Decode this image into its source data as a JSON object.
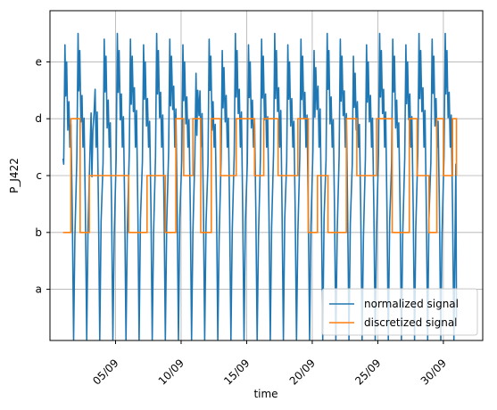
{
  "chart_data": {
    "type": "line",
    "title": "",
    "xlabel": "time",
    "ylabel": "P_J422",
    "grid": true,
    "legend_position": "bottom-right",
    "x_axis": {
      "type": "date",
      "range": [
        "2023-08-31",
        "2023-10-03"
      ],
      "ticks": [
        {
          "date": "2023-09-05",
          "label": "05/09"
        },
        {
          "date": "2023-09-10",
          "label": "10/09"
        },
        {
          "date": "2023-09-15",
          "label": "15/09"
        },
        {
          "date": "2023-09-20",
          "label": "20/09"
        },
        {
          "date": "2023-09-25",
          "label": "25/09"
        },
        {
          "date": "2023-09-30",
          "label": "30/09"
        }
      ]
    },
    "y_axis": {
      "range": [
        -0.9,
        4.9
      ],
      "ticks": [
        {
          "value": 0,
          "label": "a"
        },
        {
          "value": 1,
          "label": "b"
        },
        {
          "value": 2,
          "label": "c"
        },
        {
          "value": 3,
          "label": "d"
        },
        {
          "value": 4,
          "label": "e"
        }
      ]
    },
    "series": [
      {
        "name": "normalized signal",
        "color": "#1f77b4",
        "style": "daily-cycle",
        "start": "2023-09-01",
        "end": "2023-10-01",
        "baseline_start": 2.3,
        "daily_peaks": [
          4.3,
          4.5,
          3.1,
          4.4,
          4.5,
          4.4,
          4.3,
          4.5,
          4.4,
          4.3,
          3.8,
          4.4,
          4.2,
          4.5,
          4.3,
          4.4,
          4.5,
          4.3,
          4.4,
          4.2,
          4.5,
          4.4,
          4.1,
          4.3,
          4.5,
          4.4,
          4.3,
          4.5,
          4.4,
          4.5
        ],
        "daily_lows": [
          -1.5,
          -1.2,
          -0.9,
          -1.4,
          -1.3,
          -1.2,
          -1.1,
          -1.4,
          -1.3,
          -1.2,
          -1.3,
          -1.4,
          -1.3,
          -1.4,
          -1.2,
          -1.3,
          -1.4,
          -1.3,
          -1.1,
          -1.3,
          -1.4,
          -1.2,
          -1.3,
          -1.3,
          -1.2,
          -1.4,
          -1.3,
          -1.2,
          -1.3,
          -1.1
        ],
        "end_value": -0.5
      },
      {
        "name": "discretized signal",
        "color": "#ff7f0e",
        "steps": [
          {
            "from": "2023-09-01",
            "to": "2023-09-01.6",
            "level": 1
          },
          {
            "from": "2023-09-01.6",
            "to": "2023-09-02.3",
            "level": 3
          },
          {
            "from": "2023-09-02.3",
            "to": "2023-09-03.0",
            "level": 1
          },
          {
            "from": "2023-09-03.0",
            "to": "2023-09-06.0",
            "level": 2
          },
          {
            "from": "2023-09-06.0",
            "to": "2023-09-07.4",
            "level": 1
          },
          {
            "from": "2023-09-07.4",
            "to": "2023-09-08.8",
            "level": 2
          },
          {
            "from": "2023-09-08.8",
            "to": "2023-09-09.6",
            "level": 1
          },
          {
            "from": "2023-09-09.6",
            "to": "2023-09-10.2",
            "level": 3
          },
          {
            "from": "2023-09-10.2",
            "to": "2023-09-10.9",
            "level": 2
          },
          {
            "from": "2023-09-10.9",
            "to": "2023-09-11.5",
            "level": 3
          },
          {
            "from": "2023-09-11.5",
            "to": "2023-09-12.3",
            "level": 1
          },
          {
            "from": "2023-09-12.3",
            "to": "2023-09-13.0",
            "level": 3
          },
          {
            "from": "2023-09-13.0",
            "to": "2023-09-14.2",
            "level": 2
          },
          {
            "from": "2023-09-14.2",
            "to": "2023-09-15.6",
            "level": 3
          },
          {
            "from": "2023-09-15.6",
            "to": "2023-09-16.3",
            "level": 2
          },
          {
            "from": "2023-09-16.3",
            "to": "2023-09-17.4",
            "level": 3
          },
          {
            "from": "2023-09-17.4",
            "to": "2023-09-18.9",
            "level": 2
          },
          {
            "from": "2023-09-18.9",
            "to": "2023-09-19.7",
            "level": 3
          },
          {
            "from": "2023-09-19.7",
            "to": "2023-09-20.4",
            "level": 1
          },
          {
            "from": "2023-09-20.4",
            "to": "2023-09-21.2",
            "level": 2
          },
          {
            "from": "2023-09-21.2",
            "to": "2023-09-22.6",
            "level": 1
          },
          {
            "from": "2023-09-22.6",
            "to": "2023-09-23.4",
            "level": 3
          },
          {
            "from": "2023-09-23.4",
            "to": "2023-09-24.9",
            "level": 2
          },
          {
            "from": "2023-09-24.9",
            "to": "2023-09-26.1",
            "level": 3
          },
          {
            "from": "2023-09-26.1",
            "to": "2023-09-27.4",
            "level": 1
          },
          {
            "from": "2023-09-27.4",
            "to": "2023-09-28.0",
            "level": 3
          },
          {
            "from": "2023-09-28.0",
            "to": "2023-09-28.9",
            "level": 2
          },
          {
            "from": "2023-09-28.9",
            "to": "2023-09-29.5",
            "level": 1
          },
          {
            "from": "2023-09-29.5",
            "to": "2023-09-30.0",
            "level": 3
          },
          {
            "from": "2023-09-30.0",
            "to": "2023-09-30.7",
            "level": 2
          },
          {
            "from": "2023-09-30.7",
            "to": "2023-10-01.0",
            "level": 3
          }
        ],
        "end_drop_level": 2
      }
    ]
  }
}
